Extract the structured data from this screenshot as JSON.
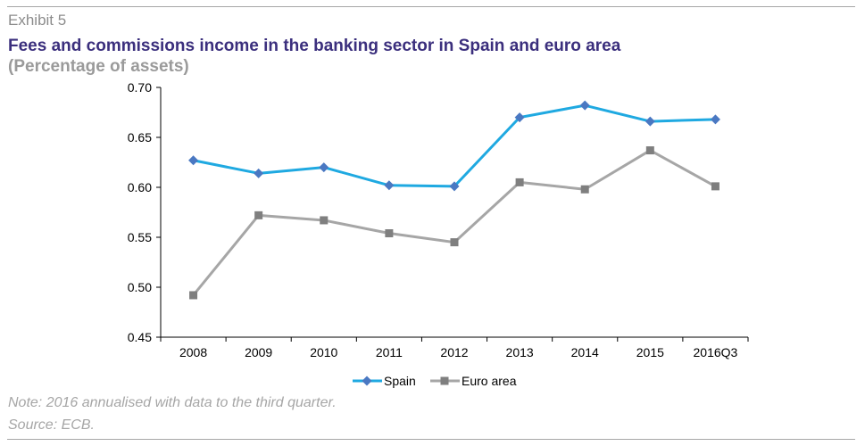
{
  "header": {
    "exhibit": "Exhibit 5",
    "title": "Fees and commissions income in the banking sector in Spain and euro area",
    "subtitle": "(Percentage of assets)"
  },
  "footer": {
    "note": "Note: 2016 annualised with data to the third quarter.",
    "source": "Source: ECB."
  },
  "colors": {
    "spain": "#1fa9e1",
    "spain_marker": "#4a78c2",
    "euro": "#a6a6a6",
    "euro_marker": "#7f7f7f",
    "axis": "#000000"
  },
  "chart_data": {
    "type": "line",
    "categories": [
      "2008",
      "2009",
      "2010",
      "2011",
      "2012",
      "2013",
      "2014",
      "2015",
      "2016Q3"
    ],
    "series": [
      {
        "name": "Spain",
        "marker": "diamond",
        "values": [
          0.627,
          0.614,
          0.62,
          0.602,
          0.601,
          0.67,
          0.682,
          0.666,
          0.668
        ]
      },
      {
        "name": "Euro area",
        "marker": "square",
        "values": [
          0.492,
          0.572,
          0.567,
          0.554,
          0.545,
          0.605,
          0.598,
          0.637,
          0.601
        ]
      }
    ],
    "yticks": [
      "0.70",
      "0.65",
      "0.60",
      "0.55",
      "0.50",
      "0.45"
    ],
    "ylim": [
      0.45,
      0.7
    ],
    "grid": false,
    "legend_position": "bottom"
  }
}
